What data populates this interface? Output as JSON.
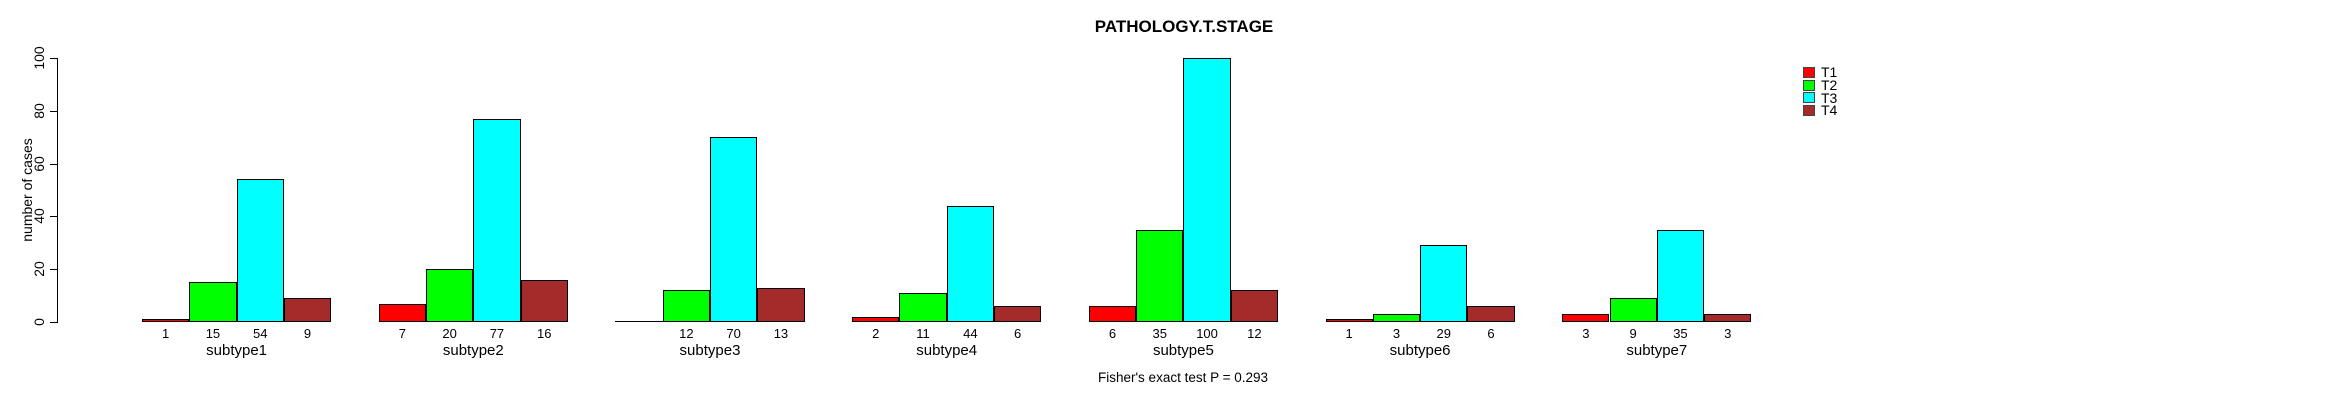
{
  "chart_data": {
    "type": "bar",
    "title": "PATHOLOGY.T.STAGE",
    "ylabel": "number of cases",
    "xlabel": "",
    "ylim": [
      0,
      100
    ],
    "yticks": [
      0,
      20,
      40,
      60,
      80,
      100
    ],
    "grid": false,
    "legend_position": "right-outside",
    "categories": [
      "subtype1",
      "subtype2",
      "subtype3",
      "subtype4",
      "subtype5",
      "subtype6",
      "subtype7"
    ],
    "series": [
      {
        "name": "T1",
        "color": "#FF0000",
        "values": [
          1,
          7,
          0,
          2,
          6,
          1,
          3
        ]
      },
      {
        "name": "T2",
        "color": "#00FF00",
        "values": [
          15,
          20,
          12,
          11,
          35,
          3,
          9
        ]
      },
      {
        "name": "T3",
        "color": "#00FFFF",
        "values": [
          54,
          77,
          70,
          44,
          100,
          29,
          35
        ]
      },
      {
        "name": "T4",
        "color": "#A52A2A",
        "values": [
          9,
          16,
          13,
          6,
          12,
          6,
          3
        ]
      }
    ],
    "bar_value_labels_shown": true,
    "zero_values_unlabeled": true,
    "caption": "Fisher's exact test P = 0.293"
  }
}
